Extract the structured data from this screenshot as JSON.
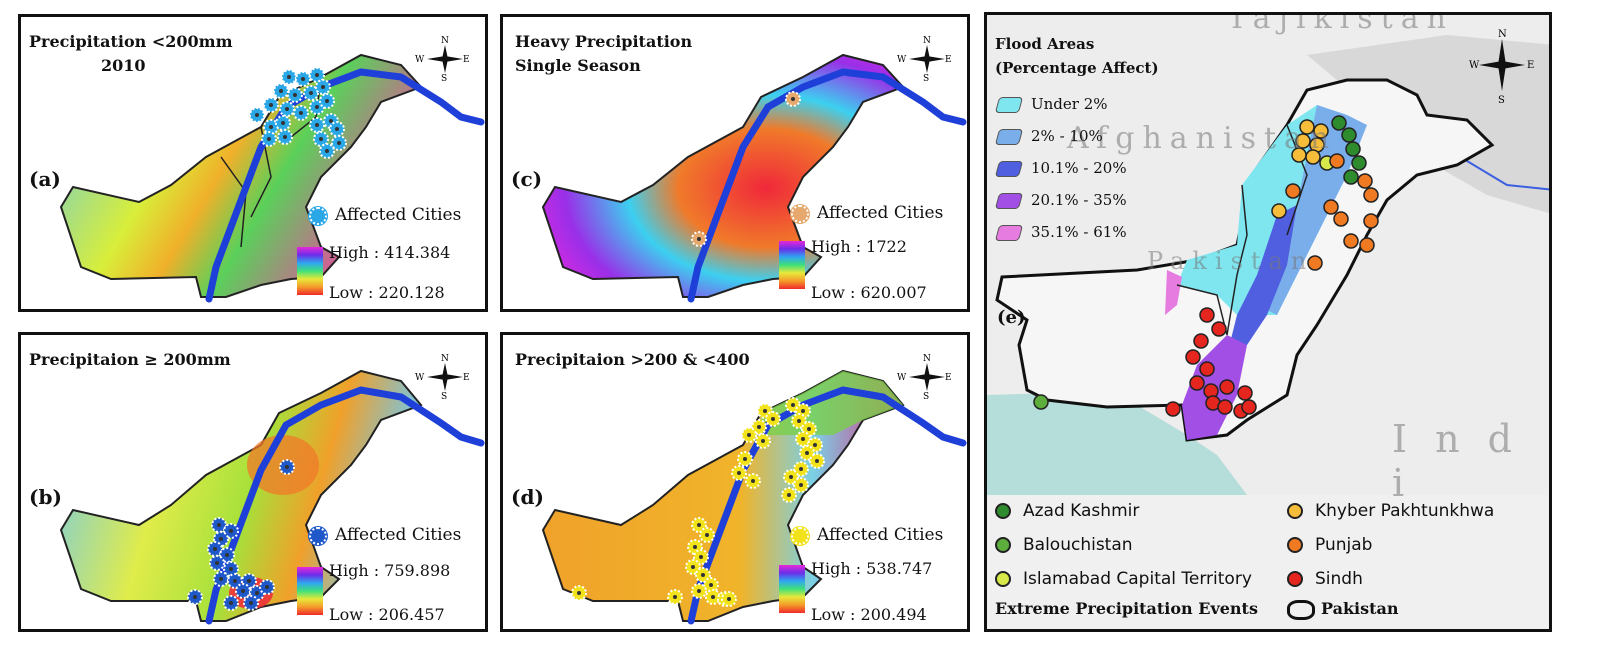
{
  "panels": {
    "a": {
      "label": "(a)",
      "title_line1": "Precipitation <200mm",
      "title_line2": "2010",
      "legend_cities": "Affected Cities",
      "high": "High : 414.384",
      "low": "Low : 220.128",
      "city_color": "#2aa7e6"
    },
    "b": {
      "label": "(b)",
      "title_line1": "Precipitaion ≥ 200mm",
      "legend_cities": "Affected Cities",
      "high": "High : 759.898",
      "low": "Low : 206.457",
      "city_color": "#1f59c9"
    },
    "c": {
      "label": "(c)",
      "title_line1": "Heavy Precipitation",
      "title_line2": "Single Season",
      "legend_cities": "Affected Cities",
      "high": "High : 1722",
      "low": "Low : 620.007",
      "city_color": "#e6a86c"
    },
    "d": {
      "label": "(d)",
      "title_line1": "Precipitaion >200 & <400",
      "legend_cities": "Affected Cities",
      "high": "High : 538.747",
      "low": "Low : 200.494",
      "city_color": "#f2e21a"
    },
    "e": {
      "label": "(e)",
      "title_line1": "Flood Areas",
      "title_line2": "(Percentage Affect)",
      "flood_classes": [
        {
          "label": "Under 2%",
          "color": "#7fe6f0"
        },
        {
          "label": "2% - 10%",
          "color": "#7aaeea"
        },
        {
          "label": "10.1% - 20%",
          "color": "#4f5fe0"
        },
        {
          "label": "20.1% - 35%",
          "color": "#a24fe6"
        },
        {
          "label": "35.1% - 61%",
          "color": "#e67be0"
        }
      ],
      "basemap_labels": {
        "tajikistan": "Tajikistan",
        "afghanistan": "Afghanistan",
        "pakistan": "Pakistan",
        "india": "I n d i"
      },
      "events_title": "Extreme Precipitation Events",
      "pakistan_outline_label": "Pakistan",
      "point_legend": [
        {
          "label": "Azad Kashmir",
          "color": "#2e8b2e"
        },
        {
          "label": "Balouchistan",
          "color": "#5cad3c"
        },
        {
          "label": "Islamabad Capital Territory",
          "color": "#d7e84a"
        },
        {
          "label": "Khyber Pakhtunkhwa",
          "color": "#f5bd3a"
        },
        {
          "label": "Punjab",
          "color": "#ef7a22"
        },
        {
          "label": "Sindh",
          "color": "#e5261f"
        }
      ]
    }
  },
  "compass": {
    "n": "N",
    "s": "S",
    "w": "W",
    "e": "E"
  }
}
